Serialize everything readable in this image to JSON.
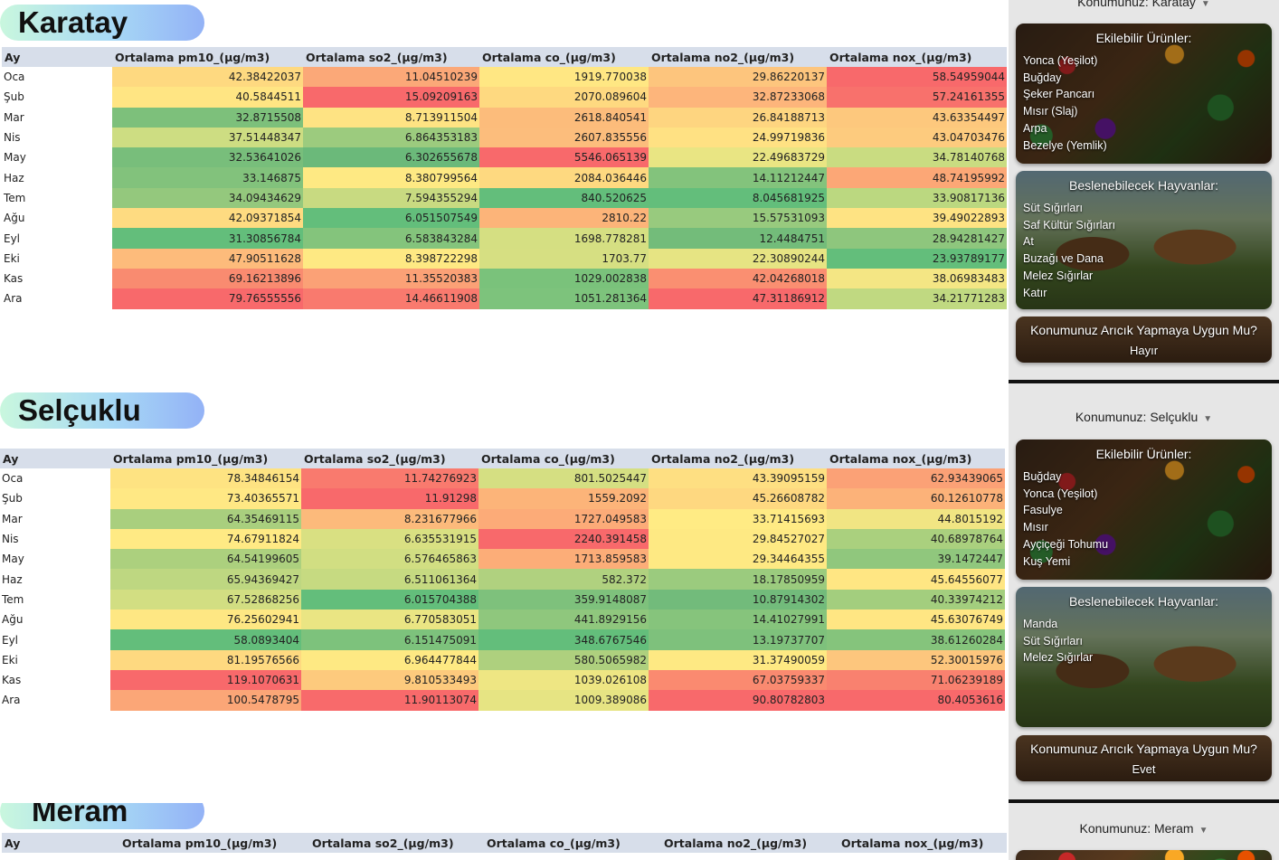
{
  "columns": [
    "Ay",
    "Ortalama pm10_(μg/m3)",
    "Ortalama so2_(μg/m3)",
    "Ortalama co_(μg/m3)",
    "Ortalama no2_(μg/m3)",
    "Ortalama nox_(μg/m3)"
  ],
  "sections": [
    {
      "name": "Karatay",
      "rows": [
        {
          "ay": "Oca",
          "values": [
            "42.38422037",
            "11.04510239",
            "1919.770038",
            "29.86220137",
            "58.54959044"
          ],
          "colors": [
            "#fed980",
            "#fba878",
            "#ffe783",
            "#fdc57d",
            "#f8696b"
          ]
        },
        {
          "ay": "Şub",
          "values": [
            "40.5844511",
            "15.09209163",
            "2070.089604",
            "32.87233068",
            "57.24161355"
          ],
          "colors": [
            "#ffe583",
            "#f8696b",
            "#fed980",
            "#fdb57b",
            "#f8716c"
          ]
        },
        {
          "ay": "Mar",
          "values": [
            "32.8715508",
            "8.713911504",
            "2618.840541",
            "26.84188713",
            "43.63354497"
          ],
          "colors": [
            "#7dc07b",
            "#fee383",
            "#fcbc7b",
            "#fed580",
            "#fdc87d"
          ]
        },
        {
          "ay": "Nis",
          "values": [
            "37.51448347",
            "6.864353183",
            "2607.835556",
            "24.99719836",
            "43.04703476"
          ],
          "colors": [
            "#cddd82",
            "#9ccb7e",
            "#fcbd7c",
            "#ffe183",
            "#fdcb7e"
          ]
        },
        {
          "ay": "May",
          "values": [
            "32.53641026",
            "6.302655678",
            "5546.065139",
            "22.49683729",
            "34.78140768"
          ],
          "colors": [
            "#78be7b",
            "#6bb97a",
            "#f8696b",
            "#e9e583",
            "#c9dc81"
          ]
        },
        {
          "ay": "Haz",
          "values": [
            "33.146875",
            "8.380799564",
            "2084.036446",
            "14.11212447",
            "48.74195992"
          ],
          "colors": [
            "#82c27c",
            "#fee983",
            "#fed980",
            "#83c37c",
            "#fca776"
          ]
        },
        {
          "ay": "Tem",
          "values": [
            "34.09434629",
            "7.594355294",
            "840.520625",
            "8.045681925",
            "33.90817136"
          ],
          "colors": [
            "#94c87d",
            "#c8da81",
            "#63be7b",
            "#63be7b",
            "#bbd880"
          ]
        },
        {
          "ay": "Ağu",
          "values": [
            "42.09371854",
            "6.051507549",
            "2810.22",
            "15.57531093",
            "39.49022893"
          ],
          "colors": [
            "#fedb81",
            "#63be7b",
            "#fcb479",
            "#98ca7e",
            "#fee383"
          ]
        },
        {
          "ay": "Eyl",
          "values": [
            "31.30856784",
            "6.583843284",
            "1698.778281",
            "12.4484751",
            "28.94281427"
          ],
          "colors": [
            "#63be7b",
            "#84c47c",
            "#d5df82",
            "#73bc7a",
            "#8ec67d"
          ]
        },
        {
          "ay": "Eki",
          "values": [
            "47.90511628",
            "8.398722298",
            "1703.77",
            "22.30890244",
            "23.93789177"
          ],
          "colors": [
            "#fdbb7b",
            "#fee983",
            "#d6df82",
            "#e6e483",
            "#63be7b"
          ]
        },
        {
          "ay": "Kas",
          "values": [
            "69.16213896",
            "11.35520383",
            "1029.002838",
            "42.04268018",
            "38.06983483"
          ],
          "colors": [
            "#f98b70",
            "#fba176",
            "#7ac27b",
            "#fa8f71",
            "#f4e684"
          ]
        },
        {
          "ay": "Ara",
          "values": [
            "79.76555556",
            "14.46611908",
            "1051.281364",
            "47.31186912",
            "34.21771283"
          ],
          "colors": [
            "#f8696b",
            "#f97a6e",
            "#7dc37c",
            "#f8696b",
            "#c0d981"
          ]
        }
      ],
      "panel": {
        "location_label": "Konumunuz: Karatay",
        "crops_title": "Ekilebilir Ürünler:",
        "crops": [
          "Yonca (Yeşilot)",
          "Buğday",
          "Şeker Pancarı",
          "Mısır (Slaj)",
          "Arpa",
          "Bezelye (Yemlik)"
        ],
        "animals_title": "Beslenebilecek Hayvanlar:",
        "animals": [
          "Süt Sığırları",
          "Saf Kültür Sığırları",
          "At",
          "Buzağı ve Dana",
          "Melez Sığırlar",
          "Katır"
        ],
        "bee_question": "Konumunuz Arıcık Yapmaya Uygun Mu?",
        "bee_answer": "Hayır"
      }
    },
    {
      "name": "Selçuklu",
      "rows": [
        {
          "ay": "Oca",
          "values": [
            "78.34846154",
            "11.74276923",
            "801.5025447",
            "43.39095159",
            "62.93439065"
          ],
          "colors": [
            "#fee382",
            "#f97a6e",
            "#d5df82",
            "#fedf82",
            "#fba176"
          ]
        },
        {
          "ay": "Şub",
          "values": [
            "73.40365571",
            "11.91298",
            "1559.2092",
            "45.26608782",
            "60.12610778"
          ],
          "colors": [
            "#ffe884",
            "#f8696b",
            "#fcb479",
            "#fed880",
            "#fcb279"
          ]
        },
        {
          "ay": "Mar",
          "values": [
            "64.35469115",
            "8.231677966",
            "1727.049583",
            "33.71415693",
            "44.8015192"
          ],
          "colors": [
            "#a9cf7e",
            "#fcba7b",
            "#fcab78",
            "#ffeb84",
            "#f1e583"
          ]
        },
        {
          "ay": "Nis",
          "values": [
            "74.67911824",
            "6.635531915",
            "2240.391458",
            "29.84527027",
            "40.68978764"
          ],
          "colors": [
            "#ffea84",
            "#d9e082",
            "#f8696b",
            "#fee983",
            "#aad07e"
          ]
        },
        {
          "ay": "May",
          "values": [
            "64.54199605",
            "6.576465863",
            "1713.859583",
            "29.34464355",
            "39.1472447"
          ],
          "colors": [
            "#acd07e",
            "#d1de82",
            "#fcad78",
            "#fee983",
            "#90c77d"
          ]
        },
        {
          "ay": "Haz",
          "values": [
            "65.94369427",
            "6.511061364",
            "582.372",
            "18.17850959",
            "45.64556077"
          ],
          "colors": [
            "#bed781",
            "#c6da81",
            "#b0d17f",
            "#9bcb7e",
            "#ffe683"
          ]
        },
        {
          "ay": "Tem",
          "values": [
            "67.52868256",
            "6.015704388",
            "359.9148087",
            "10.87914302",
            "40.33974212"
          ],
          "colors": [
            "#d2de82",
            "#63be7b",
            "#7ec17c",
            "#72bb7b",
            "#a3ce7e"
          ]
        },
        {
          "ay": "Ağu",
          "values": [
            "76.25602941",
            "6.770583051",
            "441.8929156",
            "14.41027991",
            "45.63076749"
          ],
          "colors": [
            "#fee783",
            "#eae583",
            "#8fc77d",
            "#86c47c",
            "#ffe683"
          ]
        },
        {
          "ay": "Eyl",
          "values": [
            "58.0893404",
            "6.151475091",
            "348.6767546",
            "13.19737707",
            "38.61260284"
          ],
          "colors": [
            "#63be7b",
            "#7dc27c",
            "#63be7b",
            "#7ec17c",
            "#85c47c"
          ]
        },
        {
          "ay": "Eki",
          "values": [
            "81.19576566",
            "6.964477844",
            "580.5065982",
            "31.37490059",
            "52.30015976"
          ],
          "colors": [
            "#fed980",
            "#fee983",
            "#aed07e",
            "#fee983",
            "#fdc67d"
          ]
        },
        {
          "ay": "Kas",
          "values": [
            "119.1070631",
            "9.810533493",
            "1039.026108",
            "67.03759337",
            "71.06239189"
          ],
          "colors": [
            "#f8696b",
            "#fdca7d",
            "#eee683",
            "#fa8a70",
            "#f9816f"
          ]
        },
        {
          "ay": "Ara",
          "values": [
            "100.5478795",
            "11.90113074",
            "1009.389086",
            "90.80782803",
            "80.4053616"
          ],
          "colors": [
            "#fba677",
            "#f86a6b",
            "#e6e483",
            "#f8696b",
            "#f8696b"
          ]
        }
      ],
      "panel": {
        "location_label": "Konumunuz: Selçuklu",
        "crops_title": "Ekilebilir Ürünler:",
        "crops": [
          "Buğday",
          "Yonca (Yeşilot)",
          "Fasulye",
          "Mısır",
          "Ayçiçeği Tohumu",
          "Kuş Yemi"
        ],
        "animals_title": "Beslenebilecek Hayvanlar:",
        "animals": [
          "Manda",
          "Süt Sığırları",
          "Melez Sığırlar"
        ],
        "bee_question": "Konumunuz Arıcık Yapmaya Uygun Mu?",
        "bee_answer": "Evet"
      }
    },
    {
      "name": "Meram",
      "panel": {
        "location_label": "Konumunuz: Meram"
      }
    }
  ],
  "colors": {
    "header_row": "#d7deea",
    "panel_bg": "#e6e6e6",
    "separator": "#111111",
    "pill_start": "#c9f7de",
    "pill_end": "#93b2f6"
  },
  "icons": {
    "dropdown": "chevron-down-icon"
  }
}
